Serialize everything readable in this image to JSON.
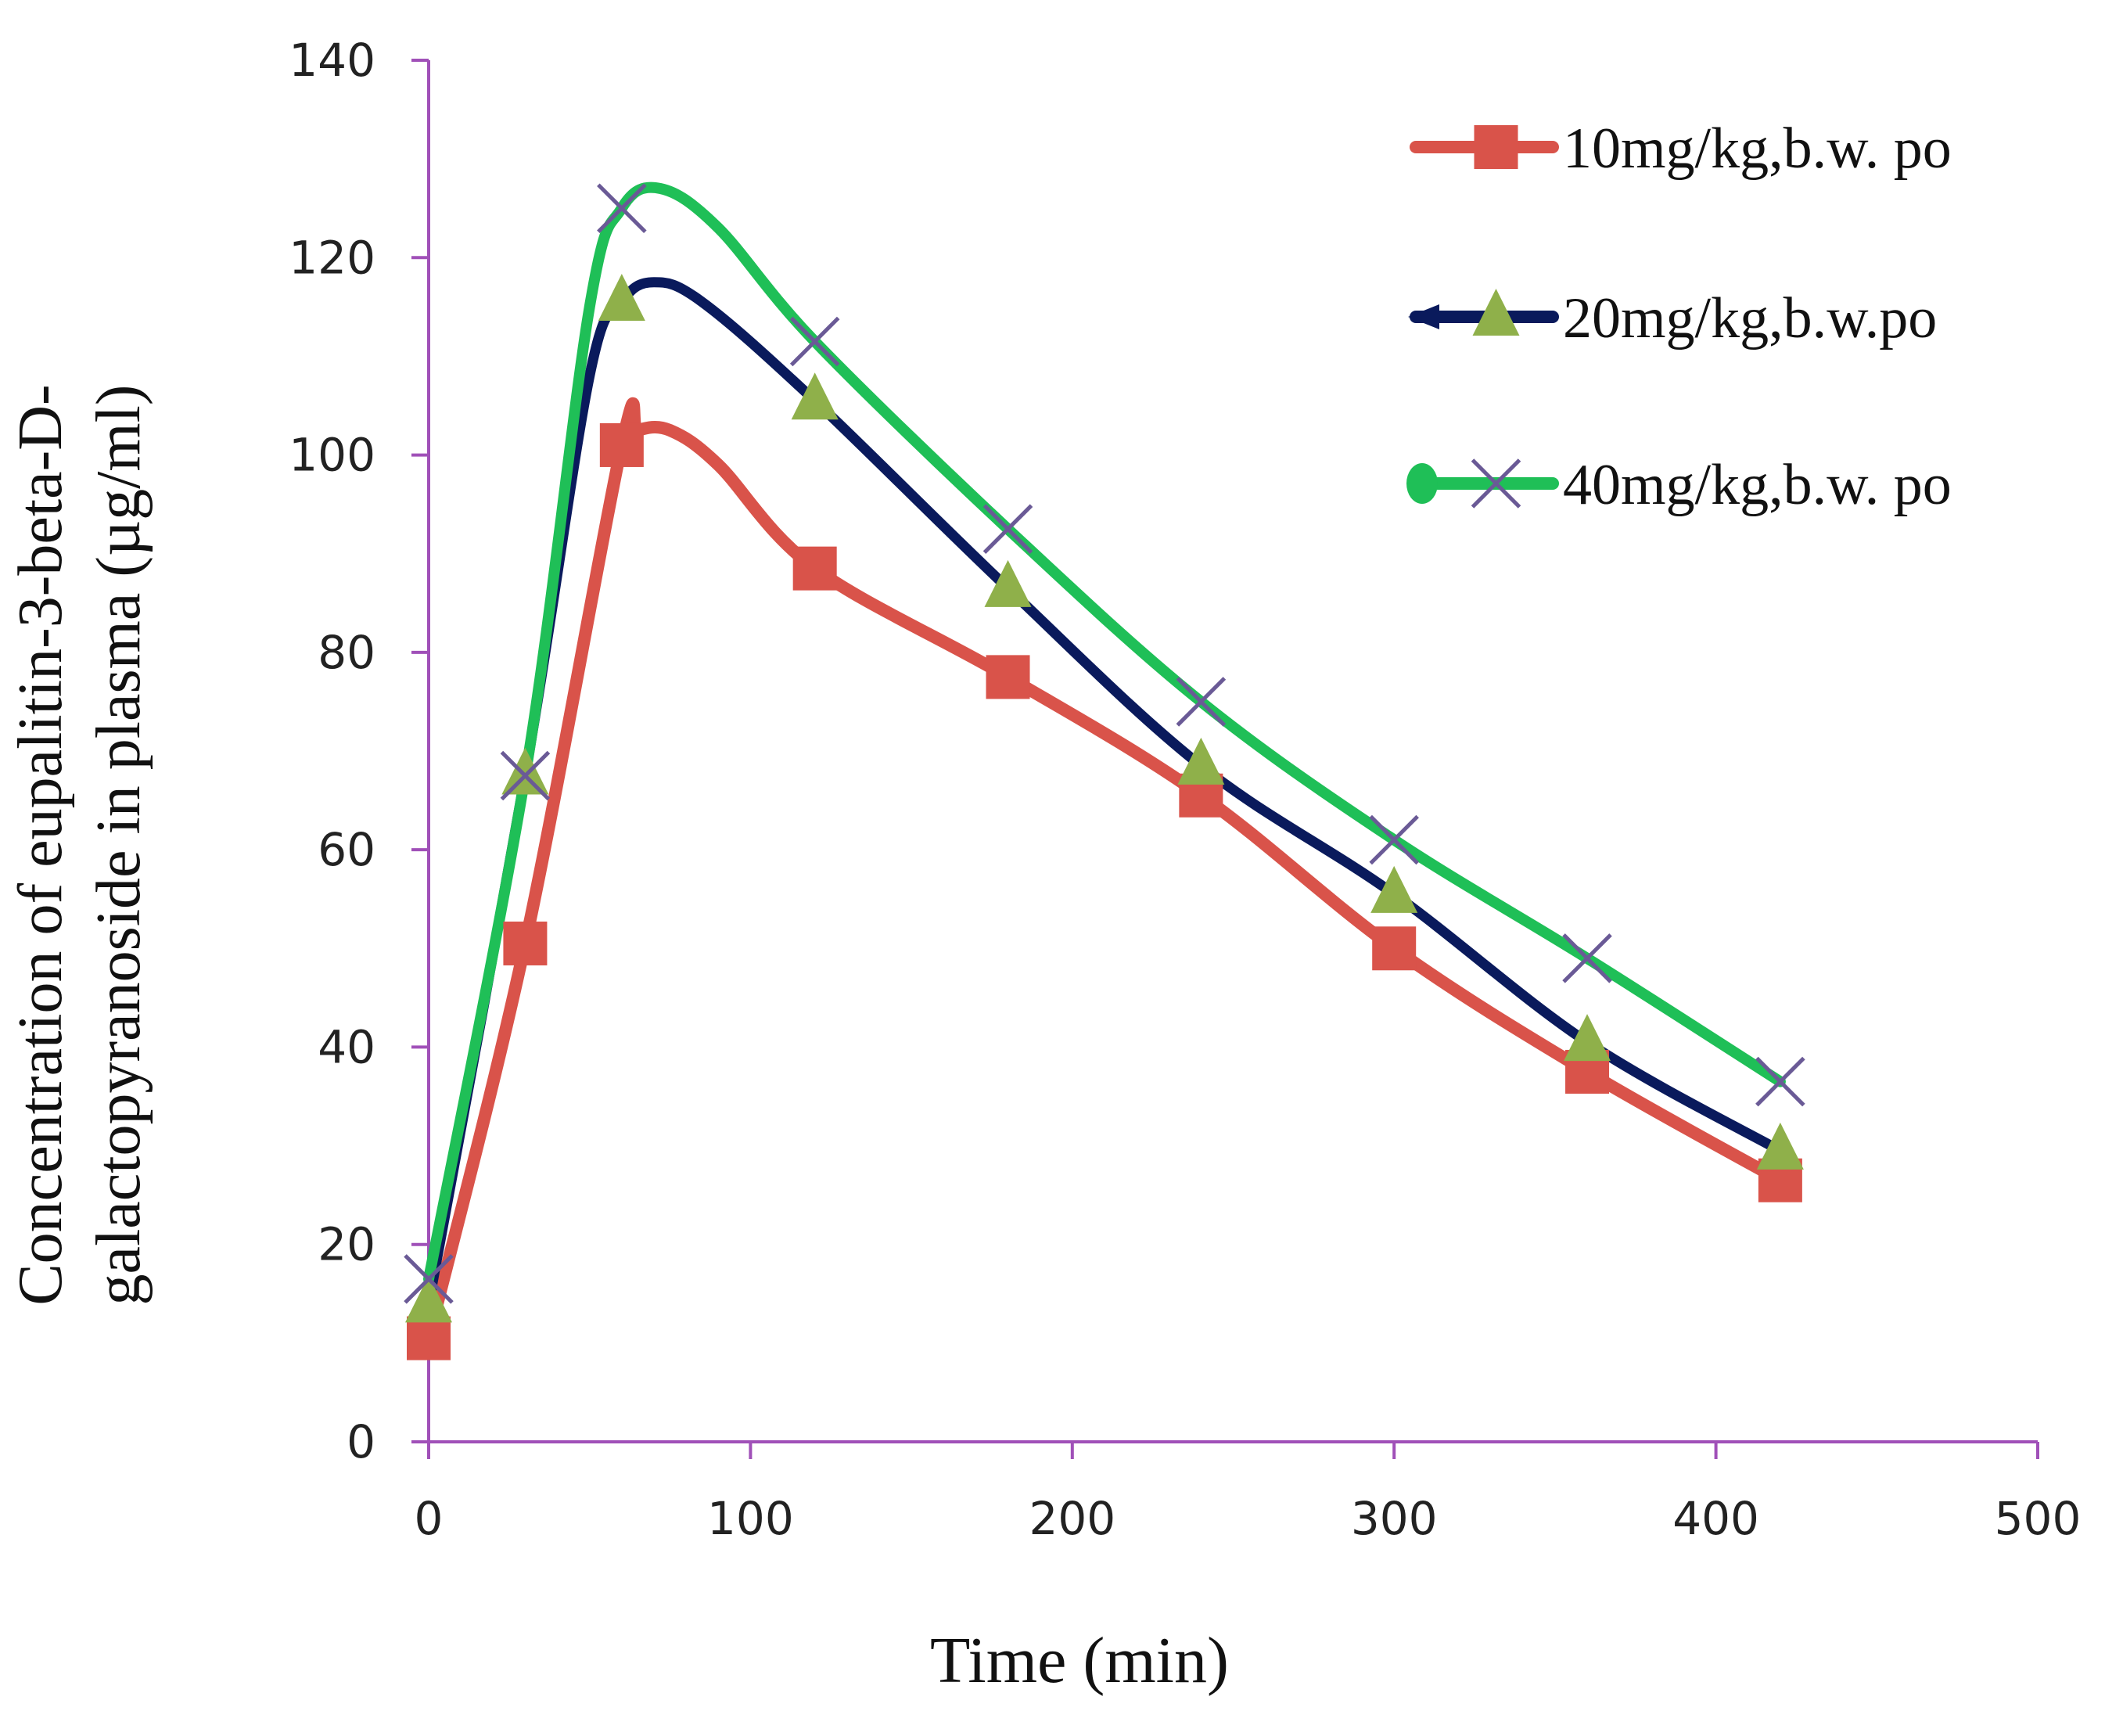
{
  "chart_data": {
    "type": "line",
    "title": "",
    "xlabel": "Time (min)",
    "ylabel_line1": "Concentration of eupalitin-3-beta-D-",
    "ylabel_line2": "galactopyranoside  in plasma (µg/ml)",
    "xlim": [
      0,
      500
    ],
    "ylim": [
      0,
      140
    ],
    "x_ticks": [
      0,
      100,
      200,
      300,
      400,
      500
    ],
    "y_ticks": [
      0,
      20,
      40,
      60,
      80,
      100,
      120,
      140
    ],
    "x_tick_labels": [
      "0",
      "100",
      "200",
      "300",
      "400",
      "500"
    ],
    "y_tick_labels": [
      "0",
      "20",
      "40",
      "60",
      "80",
      "100",
      "120",
      "140"
    ],
    "grid": false,
    "legend_position": "top-right",
    "x": [
      0,
      30,
      60,
      120,
      180,
      240,
      300,
      360,
      420
    ],
    "series": [
      {
        "name": "10mg/kg,b.w. po",
        "marker": "square",
        "color": "#d9534a",
        "marker_color": "#d9534a",
        "values": [
          10.5,
          50.5,
          101,
          88.5,
          77.5,
          65.5,
          50,
          37.5,
          26.5
        ],
        "curve": [
          [
            0,
            10.5
          ],
          [
            30,
            50.5
          ],
          [
            60,
            101
          ],
          [
            65,
            102.5
          ],
          [
            75,
            102.5
          ],
          [
            90,
            99
          ],
          [
            120,
            88.5
          ],
          [
            180,
            77.5
          ],
          [
            240,
            65.5
          ],
          [
            300,
            50
          ],
          [
            360,
            37.5
          ],
          [
            420,
            26.5
          ]
        ]
      },
      {
        "name": "20mg/kg,b.w.po",
        "marker": "triangle",
        "color": "#0a1a5c",
        "marker_color": "#8fb04a",
        "values": [
          14,
          67.5,
          115.5,
          105.5,
          86.5,
          68.5,
          55.5,
          40.5,
          29.5
        ],
        "curve": [
          [
            0,
            14
          ],
          [
            30,
            67.5
          ],
          [
            50,
            108
          ],
          [
            60,
            115.5
          ],
          [
            70,
            117.5
          ],
          [
            85,
            115.5
          ],
          [
            120,
            105.5
          ],
          [
            180,
            86.5
          ],
          [
            240,
            68.5
          ],
          [
            300,
            55.5
          ],
          [
            360,
            40.5
          ],
          [
            420,
            29.5
          ]
        ]
      },
      {
        "name": "40mg/kg,b.w. po",
        "marker": "x",
        "color": "#1fbf57",
        "marker_color": "#6a5a96",
        "values": [
          16.5,
          67.5,
          125,
          111.5,
          92.5,
          75,
          61,
          49,
          36.5
        ],
        "curve": [
          [
            0,
            16.5
          ],
          [
            30,
            67.5
          ],
          [
            50,
            115
          ],
          [
            60,
            125
          ],
          [
            72,
            127
          ],
          [
            90,
            123
          ],
          [
            120,
            111.5
          ],
          [
            180,
            92.5
          ],
          [
            240,
            75
          ],
          [
            300,
            61
          ],
          [
            360,
            49
          ],
          [
            420,
            36.5
          ]
        ]
      }
    ]
  }
}
